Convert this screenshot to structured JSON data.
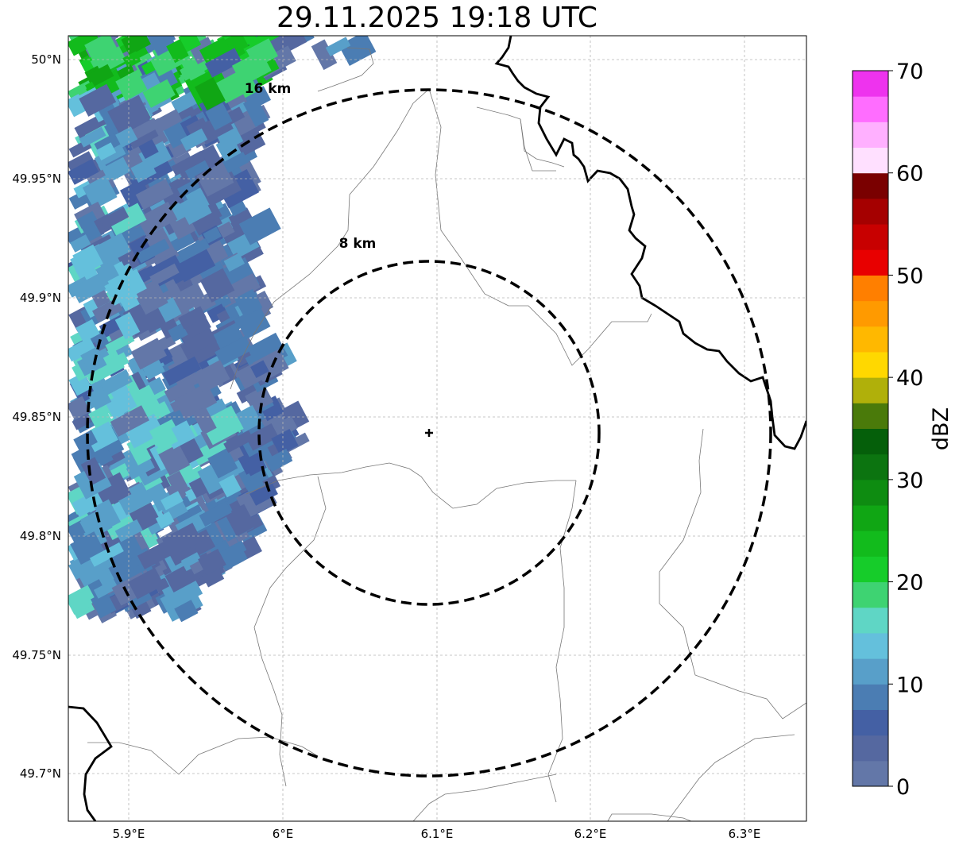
{
  "title": "29.11.2025 19:18 UTC",
  "map": {
    "lon_ticks": [
      "5.9°E",
      "6°E",
      "6.1°E",
      "6.2°E",
      "6.3°E"
    ],
    "lat_ticks": [
      "50°N",
      "49.95°N",
      "49.9°N",
      "49.85°N",
      "49.8°N",
      "49.75°N",
      "49.7°N"
    ],
    "radar_site": {
      "lon": 6.095,
      "lat": 49.842
    },
    "rings": [
      {
        "label": "8 km",
        "radius_km": 8
      },
      {
        "label": "16 km",
        "radius_km": 16
      }
    ]
  },
  "colorbar": {
    "label": "dBZ",
    "ticks": [
      "0",
      "10",
      "20",
      "30",
      "40",
      "50",
      "60",
      "70"
    ],
    "colors": [
      "#6377a8",
      "#5568a0",
      "#4460a4",
      "#4b7db3",
      "#589fc9",
      "#64c0dc",
      "#5fd6c5",
      "#3ed372",
      "#16cc2a",
      "#12bb1c",
      "#10a614",
      "#0e8c11",
      "#0c7410",
      "#055f0a",
      "#4a7a0a",
      "#b0b00a",
      "#ffd800",
      "#ffb800",
      "#ff9a00",
      "#ff7f00",
      "#e80000",
      "#c80000",
      "#a50000",
      "#7a0000",
      "#ffe0ff",
      "#ffb0ff",
      "#ff6dff",
      "#ee33ee"
    ]
  }
}
